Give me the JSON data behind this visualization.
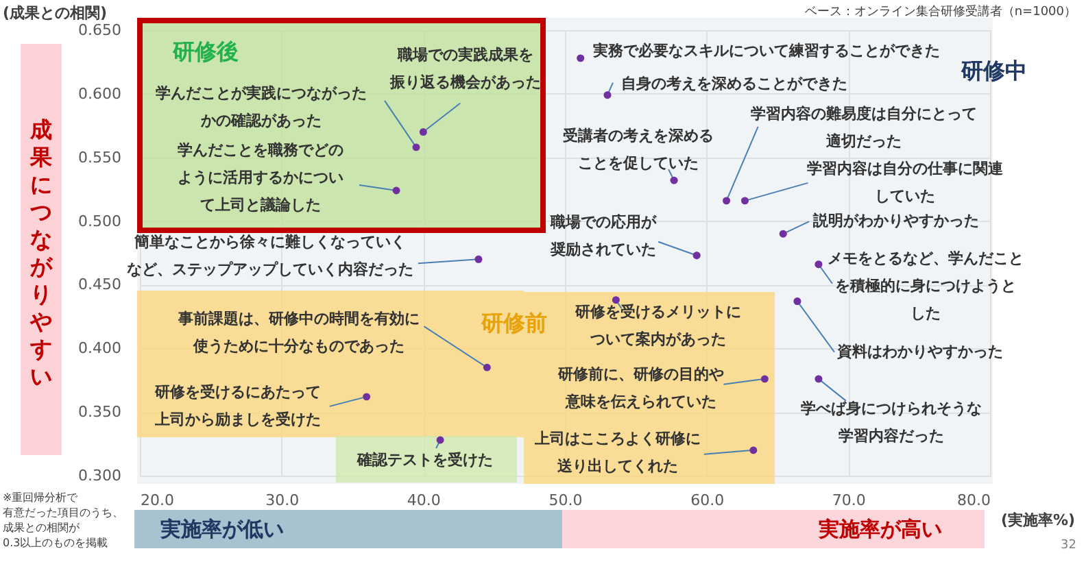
{
  "chart_data": {
    "type": "scatter",
    "xlabel": "(実施率%)",
    "ylabel": "(成果との相関)",
    "x": [
      40.0,
      39.5,
      38.1,
      43.9,
      51.1,
      53.0,
      57.7,
      61.4,
      62.7,
      65.4,
      59.3,
      67.9,
      66.4,
      53.6,
      44.5,
      36.0,
      41.2,
      64.1,
      67.9,
      63.3
    ],
    "values": [
      0.57,
      0.558,
      0.524,
      0.47,
      0.628,
      0.599,
      0.532,
      0.516,
      0.516,
      0.49,
      0.473,
      0.466,
      0.437,
      0.438,
      0.385,
      0.362,
      0.328,
      0.376,
      0.376,
      0.32
    ],
    "color": "#7030a0",
    "marker": "circle",
    "grid": true,
    "xlim": [
      20,
      80
    ],
    "ylim": [
      0.3,
      0.65
    ],
    "xticks": [
      {
        "value": 20,
        "label": "20.0"
      },
      {
        "value": 30,
        "label": "30.0"
      },
      {
        "value": 40,
        "label": "40.0"
      },
      {
        "value": 50,
        "label": "50.0"
      },
      {
        "value": 60,
        "label": "60.0"
      },
      {
        "value": 70,
        "label": "70.0"
      },
      {
        "value": 80,
        "label": "80.0"
      }
    ],
    "yticks": [
      {
        "value": 0.3,
        "label": "0.300"
      },
      {
        "value": 0.35,
        "label": "0.350"
      },
      {
        "value": 0.4,
        "label": "0.400"
      },
      {
        "value": 0.45,
        "label": "0.450"
      },
      {
        "value": 0.5,
        "label": "0.500"
      },
      {
        "value": 0.55,
        "label": "0.550"
      },
      {
        "value": 0.6,
        "label": "0.600"
      },
      {
        "value": 0.65,
        "label": "0.650"
      }
    ],
    "annotations": [
      {
        "text": "職場での実践成果を振り返る機会があった",
        "x": 40.0,
        "y": 0.57
      },
      {
        "text": "学んだことが実践につながったかの確認があった",
        "x": 39.5,
        "y": 0.558
      },
      {
        "text": "学んだことを職務でどのように活用するかについて上司と議論した",
        "x": 38.1,
        "y": 0.524
      },
      {
        "text": "簡単なことから徐々に難しくなっていくなど、ステップアップしていく内容だった",
        "x": 43.9,
        "y": 0.47
      },
      {
        "text": "実務で必要なスキルについて練習することができた",
        "x": 51.1,
        "y": 0.628
      },
      {
        "text": "自身の考えを深めることができた",
        "x": 53.0,
        "y": 0.599
      },
      {
        "text": "受講者の考えを深めることを促していた",
        "x": 57.7,
        "y": 0.532
      },
      {
        "text": "学習内容の難易度は自分にとって適切だった",
        "x": 61.4,
        "y": 0.516
      },
      {
        "text": "学習内容は自分の仕事に関連していた",
        "x": 62.7,
        "y": 0.516
      },
      {
        "text": "説明がわかりやすかった",
        "x": 65.4,
        "y": 0.49
      },
      {
        "text": "職場での応用が奨励されていた",
        "x": 59.3,
        "y": 0.473
      },
      {
        "text": "メモをとるなど、学んだことを積極的に身につけようとした",
        "x": 67.9,
        "y": 0.466
      },
      {
        "text": "資料はわかりやすかった",
        "x": 66.4,
        "y": 0.437
      },
      {
        "text": "研修を受けるメリットについて案内があった",
        "x": 53.6,
        "y": 0.438
      },
      {
        "text": "事前課題は、研修中の時間を有効に使うために十分なものであった",
        "x": 44.5,
        "y": 0.385
      },
      {
        "text": "研修を受けるにあたって上司から励ましを受けた",
        "x": 36.0,
        "y": 0.362
      },
      {
        "text": "確認テストを受けた",
        "x": 41.2,
        "y": 0.328
      },
      {
        "text": "研修前に、研修の目的や意味を伝えられていた",
        "x": 64.1,
        "y": 0.376
      },
      {
        "text": "学べば身につけられそうな学習内容だった",
        "x": 67.9,
        "y": 0.376
      },
      {
        "text": "上司はこころよく研修に送り出してくれた",
        "x": 63.3,
        "y": 0.32
      },
      "ベース：オンライン集合研修受講者（n=1000）",
      "研修後",
      "研修中",
      "研修前",
      "成果につながりやすい",
      "実施率が低い",
      "実施率が高い",
      "※重回帰分析で有意だった項目のうち、成果との相関が0.3以上のものを掲載",
      "32"
    ]
  }
}
